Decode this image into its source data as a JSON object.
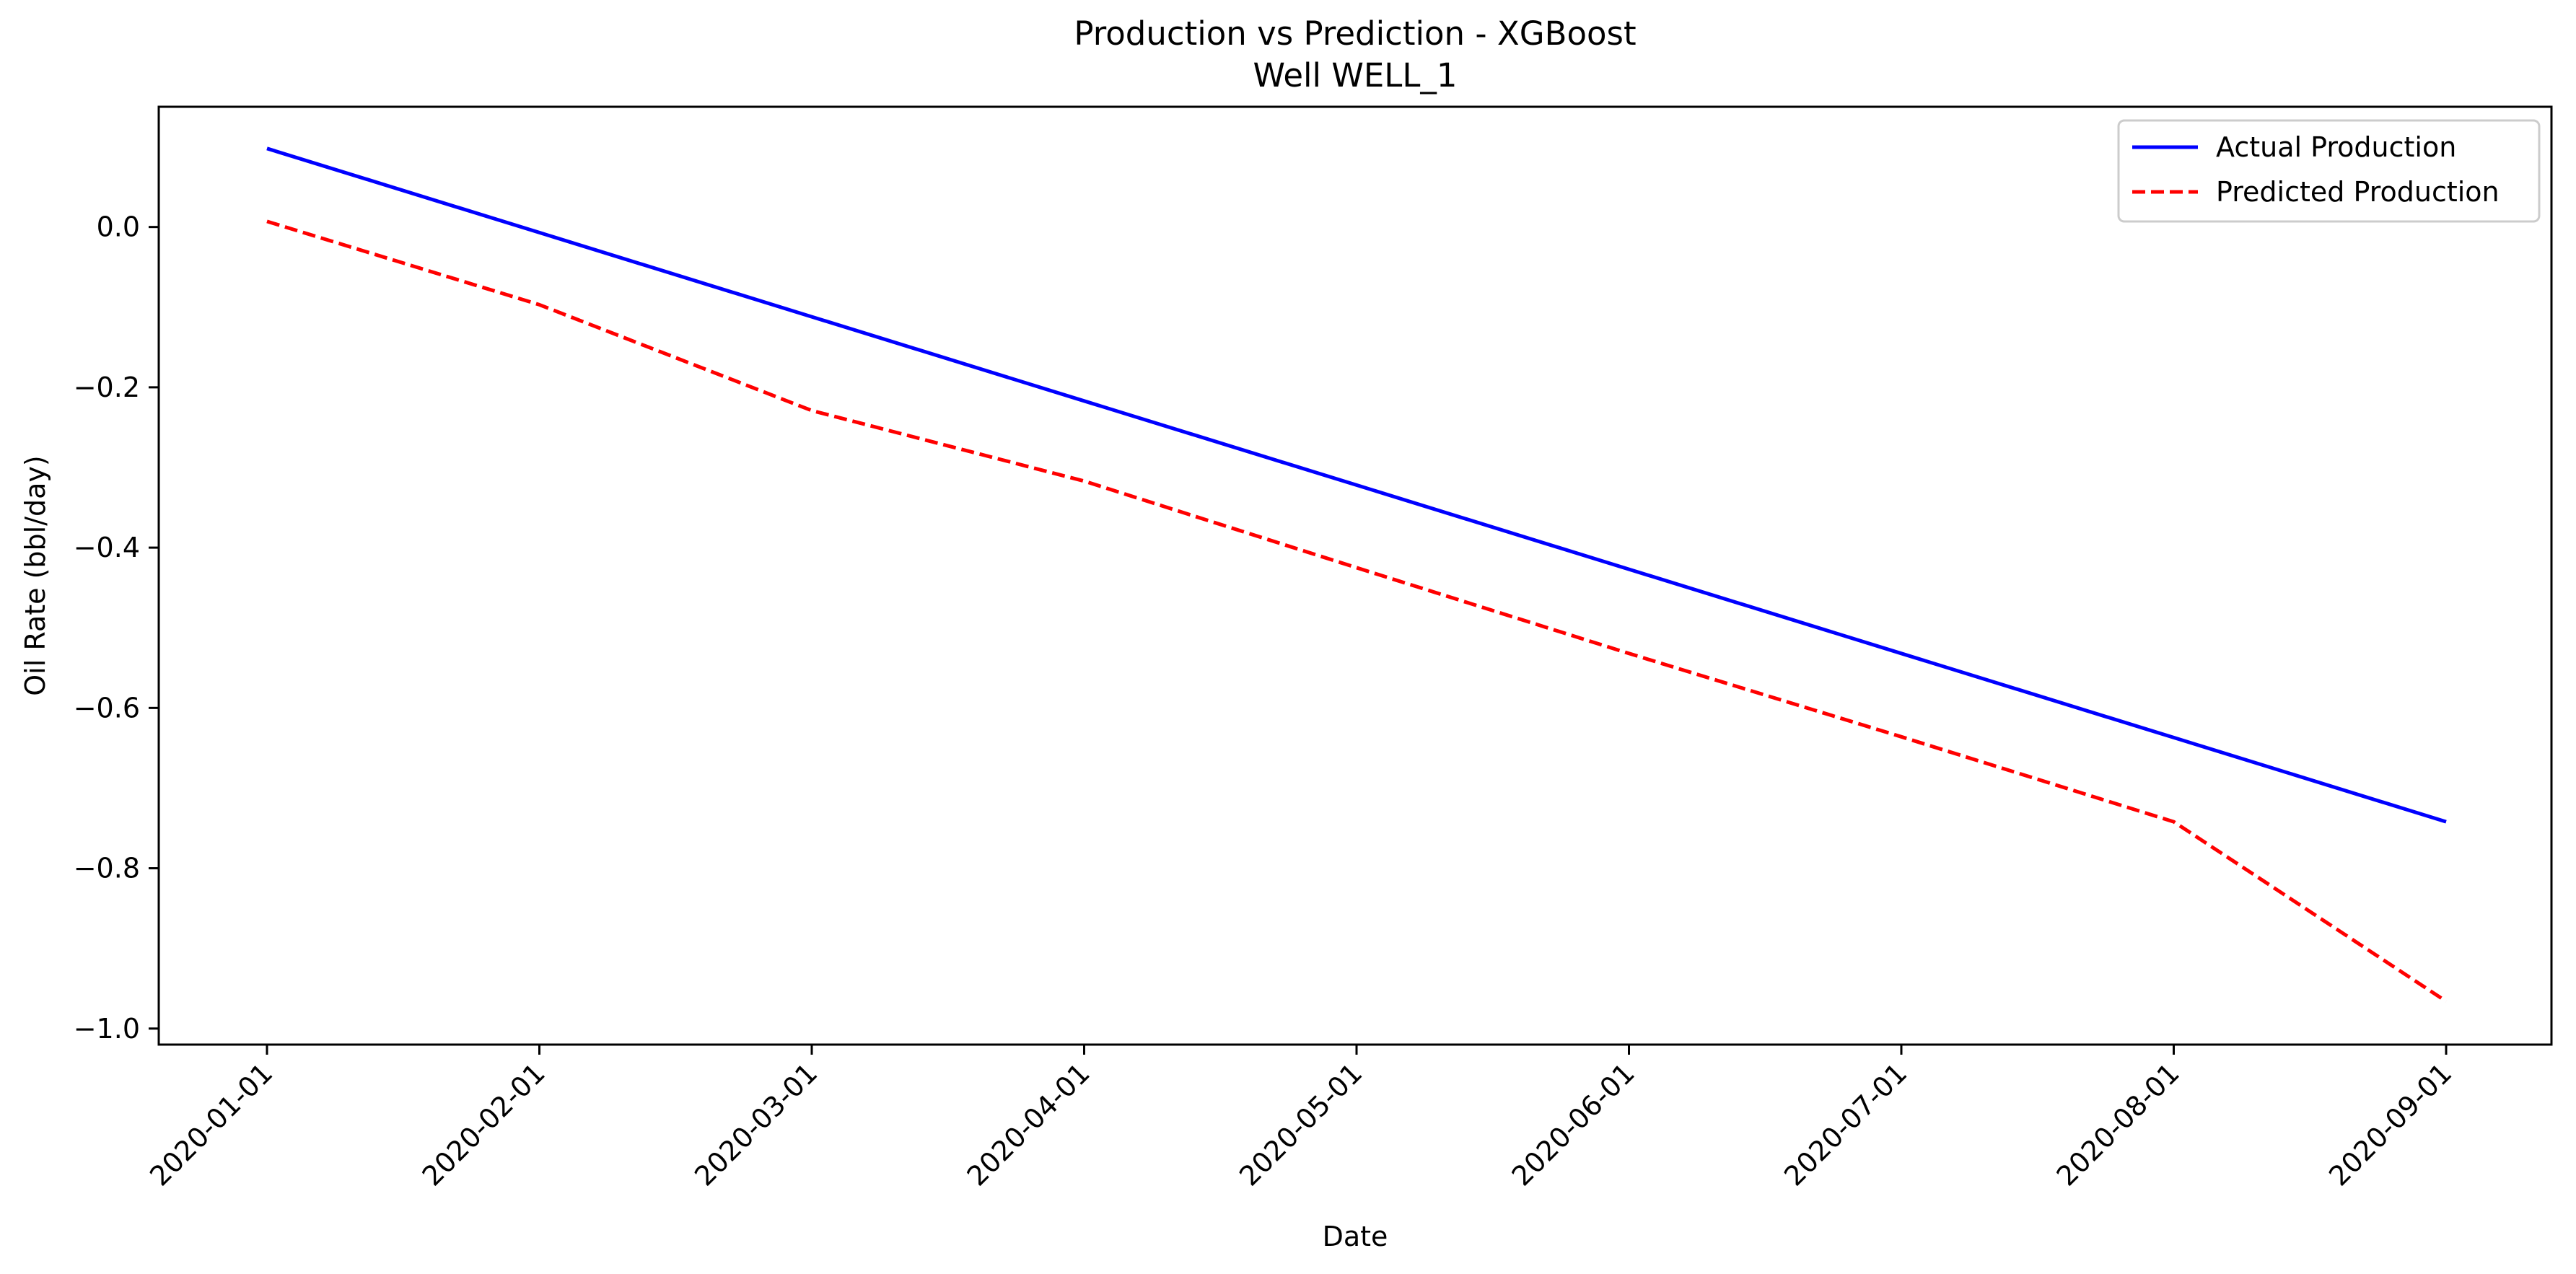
{
  "chart_data": {
    "type": "line",
    "title": "Production vs Prediction - XGBoost",
    "subtitle": "Well WELL_1",
    "xlabel": "Date",
    "ylabel": "Oil Rate (bbl/day)",
    "x": [
      "2020-01-01",
      "2020-02-01",
      "2020-03-01",
      "2020-04-01",
      "2020-05-01",
      "2020-06-01",
      "2020-07-01",
      "2020-08-01",
      "2020-09-01"
    ],
    "y_ticks": [
      0.0,
      -0.2,
      -0.4,
      -0.6,
      -0.8,
      -1.0
    ],
    "y_tick_labels": [
      "0.0",
      "−0.2",
      "−0.4",
      "−0.6",
      "−0.8",
      "−1.0"
    ],
    "ylim": [
      -1.02,
      0.15
    ],
    "grid": false,
    "legend_position": "top-right",
    "series": [
      {
        "name": "Actual Production",
        "color": "#0000ff",
        "style": "solid",
        "values": [
          0.098,
          -0.007,
          -0.112,
          -0.217,
          -0.322,
          -0.427,
          -0.532,
          -0.637,
          -0.742
        ]
      },
      {
        "name": "Predicted Production",
        "color": "#ff0000",
        "style": "dashed",
        "values": [
          0.007,
          -0.097,
          -0.229,
          -0.317,
          -0.425,
          -0.532,
          -0.636,
          -0.742,
          -0.966
        ]
      }
    ]
  }
}
